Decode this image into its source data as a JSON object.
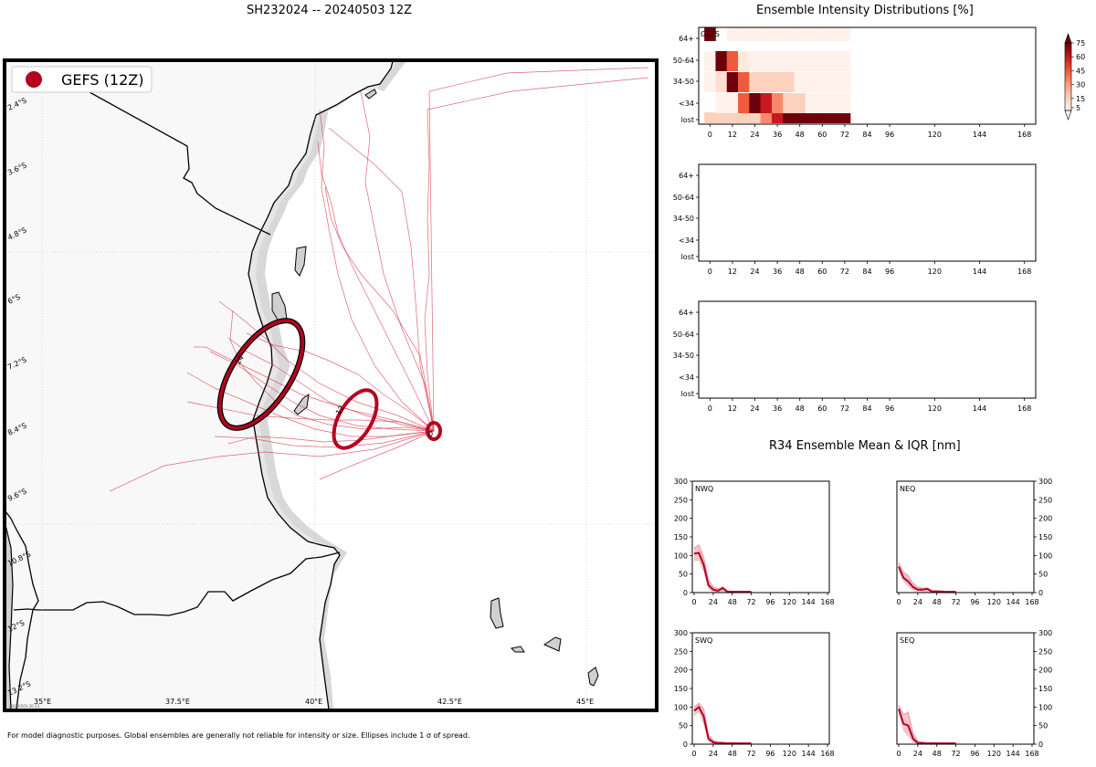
{
  "page": {
    "map_title": "SH232024 -- 20240503 12Z",
    "intensity_title": "Ensemble Intensity Distributions [%]",
    "r34_title": "R34 Ensemble Mean & IQR [nm]",
    "footnote": "For model diagnostic purposes. Global ensembles are generally not reliable for intensity or size. Ellipses include 1 σ of spread.",
    "timestamp": "20240503 20:13"
  },
  "map": {
    "legend_label": "GEFS (12Z)",
    "legend_color": "#b5001f",
    "lat_labels": [
      "2.4°S",
      "3.6°S",
      "4.8°S",
      "6°S",
      "7.2°S",
      "8.4°S",
      "9.6°S",
      "10.8°S",
      "12°S",
      "13.2°S"
    ],
    "lon_labels": [
      "35°E",
      "37.5°E",
      "40°E",
      "42.5°E",
      "45°E"
    ],
    "ellipse_labels": [
      "0",
      "12",
      "24"
    ],
    "land_color": "#f8f8f8",
    "island_color": "#d0d0d0",
    "track_color": "#d6334a"
  },
  "chart_data": [
    {
      "type": "heatmap",
      "title": "Ensemble Intensity Distributions [%]",
      "panel_label": "GEFS",
      "x_ticks": [
        0,
        12,
        24,
        36,
        48,
        60,
        72,
        84,
        96,
        120,
        144,
        168
      ],
      "x_tick_labels": [
        "0",
        "12",
        "24",
        "36",
        "48",
        "60",
        "72",
        "84",
        "96",
        "120",
        "144",
        "168"
      ],
      "y_categories": [
        "lost",
        "<34",
        "34-50",
        "50-64",
        "64+"
      ],
      "colorbar_ticks": [
        5,
        15,
        30,
        45,
        60,
        75
      ],
      "values": {
        "64+": [
          75,
          0,
          2,
          2,
          2,
          2,
          2,
          2,
          2,
          2,
          2,
          2,
          2,
          0,
          0,
          0,
          0,
          0,
          0,
          0,
          0,
          0,
          0,
          0,
          0,
          0,
          0,
          0,
          0
        ],
        "50-64": [
          2,
          75,
          45,
          5,
          2,
          2,
          2,
          2,
          2,
          2,
          2,
          2,
          2,
          0,
          0,
          0,
          0,
          0,
          0,
          0,
          0,
          0,
          0,
          0,
          0,
          0,
          0,
          0,
          0
        ],
        "34-50": [
          2,
          10,
          75,
          45,
          15,
          15,
          15,
          15,
          2,
          2,
          2,
          2,
          2,
          0,
          0,
          0,
          0,
          0,
          0,
          0,
          0,
          0,
          0,
          0,
          0,
          0,
          0,
          0,
          0
        ],
        "<34": [
          0,
          2,
          2,
          45,
          75,
          60,
          35,
          15,
          15,
          2,
          2,
          2,
          2,
          0,
          0,
          0,
          0,
          0,
          0,
          0,
          0,
          0,
          0,
          0,
          0,
          0,
          0,
          0,
          0
        ],
        "lost": [
          15,
          15,
          15,
          15,
          15,
          35,
          60,
          75,
          75,
          75,
          75,
          75,
          75,
          0,
          0,
          0,
          0,
          0,
          0,
          0,
          0,
          0,
          0,
          0,
          0,
          0,
          0,
          0,
          0
        ]
      }
    },
    {
      "type": "heatmap",
      "x_ticks": [
        0,
        12,
        24,
        36,
        48,
        60,
        72,
        84,
        96,
        120,
        144,
        168
      ],
      "x_tick_labels": [
        "0",
        "12",
        "24",
        "36",
        "48",
        "60",
        "72",
        "84",
        "96",
        "120",
        "144",
        "168"
      ],
      "y_categories": [
        "lost",
        "<34",
        "34-50",
        "50-64",
        "64+"
      ]
    },
    {
      "type": "heatmap",
      "x_ticks": [
        0,
        12,
        24,
        36,
        48,
        60,
        72,
        84,
        96,
        120,
        144,
        168
      ],
      "x_tick_labels": [
        "0",
        "12",
        "24",
        "36",
        "48",
        "60",
        "72",
        "84",
        "96",
        "120",
        "144",
        "168"
      ],
      "y_categories": [
        "lost",
        "<34",
        "34-50",
        "50-64",
        "64+"
      ]
    },
    {
      "type": "line",
      "title": "R34 Ensemble Mean & IQR [nm]",
      "quadrants": [
        {
          "label": "NWQ",
          "x": [
            0,
            6,
            12,
            18,
            24,
            30,
            36,
            42,
            48,
            54,
            60,
            66,
            72
          ],
          "mean": [
            105,
            107,
            75,
            20,
            8,
            5,
            12,
            2,
            2,
            2,
            2,
            2,
            2
          ],
          "q75": [
            120,
            128,
            95,
            35,
            15,
            10,
            15,
            5,
            3,
            2,
            2,
            2,
            2
          ],
          "q25": [
            85,
            85,
            55,
            8,
            2,
            0,
            2,
            0,
            0,
            0,
            0,
            0,
            0
          ]
        },
        {
          "label": "NEQ",
          "x": [
            0,
            6,
            12,
            18,
            24,
            30,
            36,
            42,
            48,
            54,
            60,
            66,
            72
          ],
          "mean": [
            70,
            40,
            30,
            15,
            8,
            8,
            10,
            3,
            3,
            3,
            2,
            2,
            2
          ],
          "q75": [
            80,
            55,
            45,
            25,
            15,
            12,
            12,
            5,
            5,
            3,
            3,
            2,
            2
          ],
          "q25": [
            55,
            30,
            15,
            5,
            2,
            0,
            0,
            0,
            0,
            0,
            0,
            0,
            0
          ]
        },
        {
          "label": "SWQ",
          "x": [
            0,
            6,
            12,
            18,
            24,
            30,
            36,
            42,
            48,
            54,
            60,
            66,
            72
          ],
          "mean": [
            90,
            100,
            75,
            15,
            5,
            3,
            3,
            2,
            2,
            2,
            2,
            2,
            2
          ],
          "q75": [
            100,
            110,
            95,
            25,
            10,
            5,
            5,
            3,
            3,
            2,
            2,
            2,
            2
          ],
          "q25": [
            75,
            85,
            50,
            5,
            0,
            0,
            0,
            0,
            0,
            0,
            0,
            0,
            0
          ]
        },
        {
          "label": "SEQ",
          "x": [
            0,
            6,
            12,
            18,
            24,
            30,
            36,
            42,
            48,
            54,
            60,
            66,
            72
          ],
          "mean": [
            95,
            55,
            50,
            15,
            3,
            3,
            2,
            2,
            2,
            2,
            2,
            2,
            2
          ],
          "q75": [
            105,
            80,
            85,
            30,
            8,
            5,
            3,
            3,
            3,
            2,
            2,
            2,
            2
          ],
          "q25": [
            80,
            35,
            20,
            5,
            0,
            0,
            0,
            0,
            0,
            0,
            0,
            0,
            0
          ]
        }
      ],
      "x_ticks": [
        0,
        24,
        48,
        72,
        96,
        120,
        144,
        168
      ],
      "x_tick_labels": [
        "0",
        "24",
        "48",
        "72",
        "96",
        "120",
        "144",
        "168"
      ],
      "y_ticks": [
        0,
        50,
        100,
        150,
        200,
        250,
        300
      ],
      "y_tick_labels": [
        "0",
        "50",
        "100",
        "150",
        "200",
        "250",
        "300"
      ],
      "xlim": [
        0,
        168
      ],
      "ylim": [
        0,
        300
      ],
      "mean_color": "#b5001f",
      "iqr_color": "#e8a0ac"
    }
  ]
}
